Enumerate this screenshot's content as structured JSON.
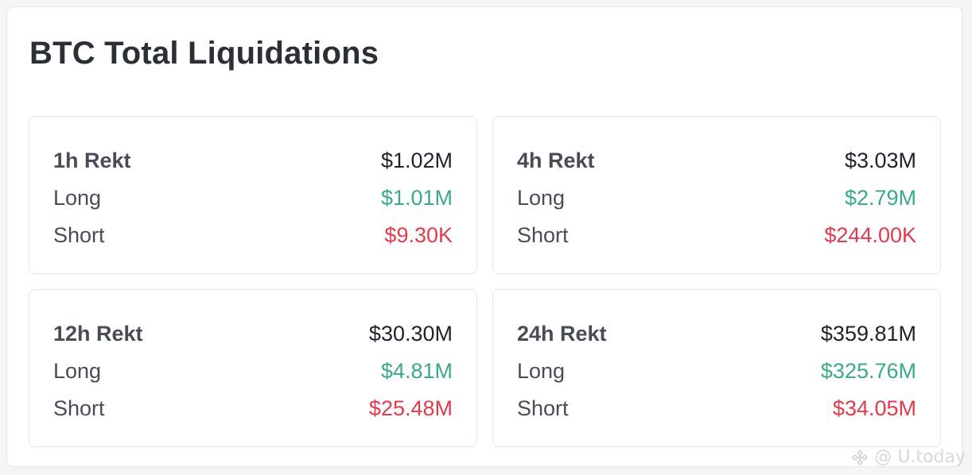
{
  "title": "BTC Total Liquidations",
  "cards": [
    {
      "label": "1h Rekt",
      "total": "$1.02M",
      "long_label": "Long",
      "long_value": "$1.01M",
      "short_label": "Short",
      "short_value": "$9.30K"
    },
    {
      "label": "4h Rekt",
      "total": "$3.03M",
      "long_label": "Long",
      "long_value": "$2.79M",
      "short_label": "Short",
      "short_value": "$244.00K"
    },
    {
      "label": "12h Rekt",
      "total": "$30.30M",
      "long_label": "Long",
      "long_value": "$4.81M",
      "short_label": "Short",
      "short_value": "$25.48M"
    },
    {
      "label": "24h Rekt",
      "total": "$359.81M",
      "long_label": "Long",
      "long_value": "$325.76M",
      "short_label": "Short",
      "short_value": "$34.05M"
    }
  ],
  "watermark": {
    "text": "@ U.today",
    "icon": "binance-logo-icon"
  },
  "colors": {
    "long": "#3aa889",
    "short": "#e03b4d",
    "text": "#1e2329",
    "muted": "#474d57"
  }
}
